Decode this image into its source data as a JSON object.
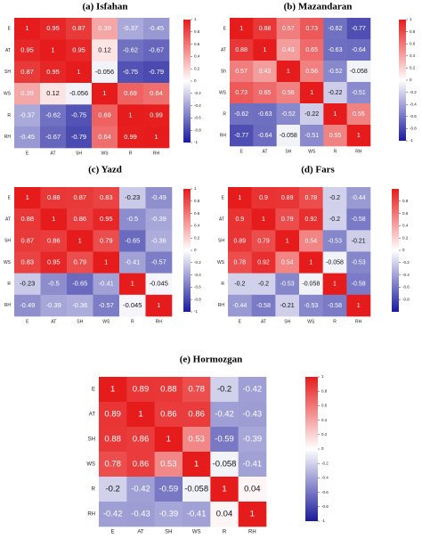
{
  "chart_data": [
    {
      "type": "heatmap",
      "title": "(a) Isfahan",
      "xcategories": [
        "E",
        "AT",
        "SH",
        "WS",
        "R",
        "RH"
      ],
      "ycategories": [
        "E",
        "AT",
        "SH",
        "WS",
        "R",
        "RH"
      ],
      "values": [
        [
          1,
          0.95,
          0.87,
          0.39,
          -0.37,
          -0.45
        ],
        [
          0.95,
          1,
          0.95,
          0.12,
          -0.62,
          -0.67
        ],
        [
          0.87,
          0.95,
          1,
          -0.056,
          -0.75,
          -0.79
        ],
        [
          0.39,
          0.12,
          -0.056,
          1,
          0.69,
          0.64
        ],
        [
          -0.37,
          -0.62,
          -0.75,
          0.69,
          1,
          0.99
        ],
        [
          -0.45,
          -0.67,
          -0.79,
          0.64,
          0.99,
          1
        ]
      ],
      "zlim": [
        -1,
        1
      ],
      "zticks": [
        1,
        0.8,
        0.6,
        0.4,
        0.2,
        0,
        -0.2,
        -0.4,
        -0.6,
        -0.8,
        -1
      ],
      "colors": [
        "#1a1a9c",
        "#ffffff",
        "#e61c1c"
      ]
    },
    {
      "type": "heatmap",
      "title": "(b) Mazandaran",
      "xcategories": [
        "E",
        "AT",
        "SH",
        "WS",
        "R",
        "RH"
      ],
      "ycategories": [
        "E",
        "AT",
        "Sh",
        "WS",
        "R",
        "RH"
      ],
      "values": [
        [
          1,
          0.88,
          0.57,
          0.73,
          -0.62,
          -0.77
        ],
        [
          0.88,
          1,
          0.43,
          0.65,
          -0.63,
          -0.64
        ],
        [
          0.57,
          0.43,
          1,
          0.56,
          -0.52,
          -0.058
        ],
        [
          0.73,
          0.65,
          0.56,
          1,
          -0.22,
          -0.51
        ],
        [
          -0.62,
          -0.63,
          -0.52,
          -0.22,
          1,
          0.55
        ],
        [
          -0.77,
          -0.64,
          -0.058,
          -0.51,
          0.55,
          1
        ]
      ],
      "zlim": [
        -1,
        1
      ],
      "zticks": [
        1,
        0.8,
        0.6,
        0.4,
        0.2,
        0,
        -0.2,
        -0.4,
        -0.6,
        -0.8,
        -1
      ],
      "colors": [
        "#1a1a9c",
        "#ffffff",
        "#e61c1c"
      ]
    },
    {
      "type": "heatmap",
      "title": "(c) Yazd",
      "xcategories": [
        "E",
        "AT",
        "SH",
        "WS",
        "R",
        "RH"
      ],
      "ycategories": [
        "E",
        "AT",
        "SH",
        "WS",
        "R",
        "RH"
      ],
      "values": [
        [
          1,
          0.88,
          0.87,
          0.83,
          -0.23,
          -0.49
        ],
        [
          0.88,
          1,
          0.86,
          0.95,
          -0.5,
          -0.39
        ],
        [
          0.87,
          0.86,
          1,
          0.79,
          -0.65,
          -0.36
        ],
        [
          0.83,
          0.95,
          0.79,
          1,
          -0.41,
          -0.57
        ],
        [
          -0.23,
          -0.5,
          -0.65,
          -0.41,
          1,
          -0.045
        ],
        [
          -0.49,
          -0.39,
          -0.36,
          -0.57,
          -0.045,
          1
        ]
      ],
      "zlim": [
        -1,
        1
      ],
      "zticks": [
        1,
        0.8,
        0.6,
        0.4,
        0.2,
        0,
        -0.2,
        -0.4,
        -0.6,
        -0.8,
        -1
      ],
      "colors": [
        "#1a1a9c",
        "#ffffff",
        "#e61c1c"
      ]
    },
    {
      "type": "heatmap",
      "title": "(d) Fars",
      "xcategories": [
        "E",
        "AT",
        "SH",
        "WS",
        "R",
        "RH"
      ],
      "ycategories": [
        "E",
        "AT",
        "SH",
        "WS",
        "R",
        "RH"
      ],
      "values": [
        [
          1,
          0.9,
          0.89,
          0.78,
          -0.2,
          -0.44
        ],
        [
          0.9,
          1,
          0.79,
          0.92,
          -0.2,
          -0.58
        ],
        [
          0.89,
          0.79,
          1,
          0.54,
          -0.53,
          -0.21
        ],
        [
          0.78,
          0.92,
          0.54,
          1,
          -0.058,
          -0.53
        ],
        [
          -0.2,
          -0.2,
          -0.53,
          -0.058,
          1,
          -0.58
        ],
        [
          -0.44,
          -0.58,
          -0.21,
          -0.53,
          -0.58,
          1
        ]
      ],
      "zlim": [
        -1,
        1
      ],
      "zticks": [
        0.8,
        0.6,
        0.4,
        0.2,
        0,
        -0.2,
        -0.4,
        -0.6,
        -0.8
      ],
      "colors": [
        "#1a1a9c",
        "#ffffff",
        "#e61c1c"
      ]
    },
    {
      "type": "heatmap",
      "title": "(e) Hormozgan",
      "xcategories": [
        "E",
        "AT",
        "SH",
        "WS",
        "R",
        "RH"
      ],
      "ycategories": [
        "E",
        "AT",
        "SH",
        "WS",
        "R",
        "RH"
      ],
      "values": [
        [
          1,
          0.89,
          0.88,
          0.78,
          -0.2,
          -0.42
        ],
        [
          0.89,
          1,
          0.86,
          0.86,
          -0.42,
          -0.43
        ],
        [
          0.88,
          0.86,
          1,
          0.53,
          -0.59,
          -0.39
        ],
        [
          0.78,
          0.86,
          0.53,
          1,
          -0.058,
          -0.41
        ],
        [
          -0.2,
          -0.42,
          -0.59,
          -0.058,
          1,
          0.04
        ],
        [
          -0.42,
          -0.43,
          -0.39,
          -0.41,
          0.04,
          1
        ]
      ],
      "zlim": [
        -1,
        1
      ],
      "zticks": [
        1,
        0.8,
        0.6,
        0.4,
        0.2,
        0,
        -0.2,
        -0.4,
        -0.6,
        -0.8,
        -1
      ],
      "colors": [
        "#1a1a9c",
        "#ffffff",
        "#e61c1c"
      ]
    }
  ]
}
